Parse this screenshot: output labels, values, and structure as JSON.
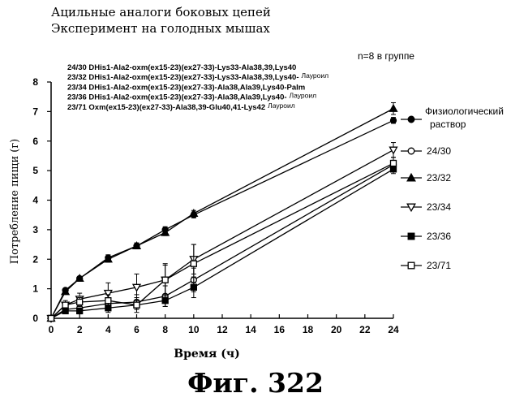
{
  "header": {
    "title_line1": "Ацильные аналоги боковых цепей",
    "title_line2": "Эксперимент на голодных мышах",
    "group_note": "n=8 в группе"
  },
  "figure_caption": "Фиг.  322",
  "chart_data": {
    "type": "line",
    "xlabel": "Время (ч)",
    "ylabel": "Потребление пищи (г)",
    "xlim": [
      0,
      24
    ],
    "ylim": [
      0,
      8
    ],
    "xticks": [
      0,
      2,
      4,
      6,
      8,
      10,
      12,
      14,
      16,
      18,
      20,
      22,
      24
    ],
    "yticks": [
      0,
      1,
      2,
      3,
      4,
      5,
      6,
      7,
      8
    ],
    "grid": false,
    "legend_position": "right",
    "compound_descriptions": [
      {
        "text": "24/30 DHis1-Ala2-oxm(ex15-23)(ex27-33)-Lys33-Ala38,39,Lys40",
        "suffix": ""
      },
      {
        "text": "23/32 DHis1-Ala2-oxm(ex15-23)(ex27-33)-Lys33-Ala38,39,Lys40-",
        "suffix": "Лауроил"
      },
      {
        "text": "23/34 DHis1-Ala2-oxm(ex15-23)(ex27-33)-Ala38,Ala39,Lys40-Palm",
        "suffix": ""
      },
      {
        "text": "23/36 DHis1-Ala2-oxm(ex15-23)(ex27-33)-Ala38,Ala39,Lys40-",
        "suffix": "Лауроил"
      },
      {
        "text": "23/71 Oxm(ex15-23)(ex27-33)-Ala38,39-Glu40,41-Lys42",
        "suffix": "Лауроил"
      }
    ],
    "series": [
      {
        "name": "Физиологический раствор",
        "marker": "filled-circle",
        "x": [
          0,
          1,
          2,
          4,
          6,
          8,
          10,
          24
        ],
        "y": [
          0,
          0.95,
          1.35,
          2.05,
          2.45,
          3.0,
          3.5,
          6.7
        ],
        "err": [
          0,
          0.05,
          0.05,
          0.1,
          0.1,
          0.1,
          0.1,
          0.1
        ]
      },
      {
        "name": "24/30",
        "marker": "open-circle",
        "x": [
          0,
          1,
          2,
          4,
          6,
          8,
          10,
          24
        ],
        "y": [
          0,
          0.3,
          0.35,
          0.5,
          0.55,
          0.75,
          1.3,
          5.2
        ],
        "err": [
          0,
          0.1,
          0.15,
          0.2,
          0.25,
          0.35,
          0.4,
          0.15
        ]
      },
      {
        "name": "23/32",
        "marker": "filled-triangle-up",
        "x": [
          0,
          1,
          2,
          4,
          6,
          8,
          10,
          24
        ],
        "y": [
          0,
          0.9,
          1.35,
          2.0,
          2.45,
          2.9,
          3.55,
          7.1
        ],
        "err": [
          0,
          0.05,
          0.05,
          0.1,
          0.1,
          0.1,
          0.1,
          0.2
        ]
      },
      {
        "name": "23/34",
        "marker": "open-triangle-down",
        "x": [
          0,
          1,
          2,
          4,
          6,
          8,
          10,
          24
        ],
        "y": [
          0,
          0.45,
          0.65,
          0.85,
          1.05,
          1.3,
          2.0,
          5.7
        ],
        "err": [
          0,
          0.15,
          0.2,
          0.35,
          0.45,
          0.55,
          0.5,
          0.25
        ]
      },
      {
        "name": "23/36",
        "marker": "filled-square",
        "x": [
          0,
          1,
          2,
          4,
          6,
          8,
          10,
          24
        ],
        "y": [
          0,
          0.25,
          0.25,
          0.35,
          0.45,
          0.6,
          1.05,
          5.05
        ],
        "err": [
          0,
          0.05,
          0.1,
          0.15,
          0.15,
          0.2,
          0.35,
          0.15
        ]
      },
      {
        "name": "23/71",
        "marker": "open-square",
        "x": [
          0,
          1,
          2,
          4,
          6,
          8,
          10,
          24
        ],
        "y": [
          0,
          0.45,
          0.55,
          0.6,
          0.45,
          1.3,
          1.85,
          5.25
        ],
        "err": [
          0,
          0.1,
          0.15,
          0.2,
          0.25,
          0.5,
          0.65,
          0.2
        ]
      }
    ]
  }
}
